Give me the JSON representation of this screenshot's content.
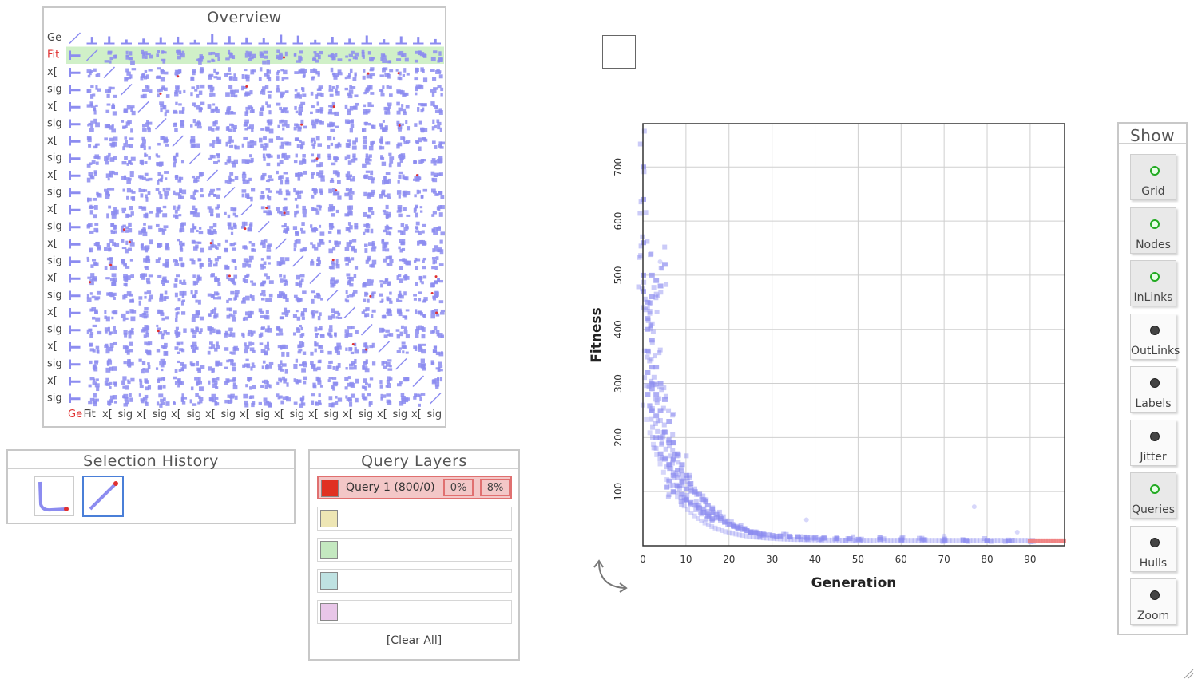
{
  "overview": {
    "title": "Overview",
    "row_labels": [
      "Ge",
      "Fit",
      "x[",
      "sig",
      "x[",
      "sig",
      "x[",
      "sig",
      "x[",
      "sig",
      "x[",
      "sig",
      "x[",
      "sig",
      "x[",
      "sig",
      "x[",
      "sig",
      "x[",
      "sig",
      "x[",
      "sig"
    ],
    "col_labels": [
      "Ge",
      "Fit",
      "x[",
      "sig",
      "x[",
      "sig",
      "x[",
      "sig",
      "x[",
      "sig",
      "x[",
      "sig",
      "x[",
      "sig",
      "x[",
      "sig",
      "x[",
      "sig",
      "x[",
      "sig",
      "x[",
      "sig"
    ],
    "highlight_label_color": "#e03030",
    "cell_color": "#8c8cf0",
    "query_highlight_color": "#d0f0c8"
  },
  "selection_history": {
    "title": "Selection History"
  },
  "query_layers": {
    "title": "Query Layers",
    "layers": [
      {
        "color": "#e03020",
        "label": "Query 1 (800/0)",
        "pct_a": "0%",
        "pct_b": "8%"
      },
      {
        "color": "#eee6b4",
        "label": ""
      },
      {
        "color": "#c4e8c0",
        "label": ""
      },
      {
        "color": "#bfe2e2",
        "label": ""
      },
      {
        "color": "#e8c6e8",
        "label": ""
      }
    ],
    "clear_all": "[Clear All]"
  },
  "show_panel": {
    "title": "Show",
    "toggles": [
      {
        "label": "Grid",
        "on": true
      },
      {
        "label": "Nodes",
        "on": true
      },
      {
        "label": "InLinks",
        "on": true
      },
      {
        "label": "OutLinks",
        "on": false
      },
      {
        "label": "Labels",
        "on": false
      },
      {
        "label": "Jitter",
        "on": false
      },
      {
        "label": "Queries",
        "on": true
      },
      {
        "label": "Hulls",
        "on": false
      },
      {
        "label": "Zoom",
        "on": false
      }
    ]
  },
  "chart_data": {
    "type": "scatter",
    "xlabel": "Generation",
    "ylabel": "Fitness",
    "xlim": [
      0,
      98
    ],
    "ylim": [
      0,
      780
    ],
    "x_ticks": [
      0,
      10,
      20,
      30,
      40,
      50,
      60,
      70,
      80,
      90
    ],
    "y_ticks": [
      100,
      200,
      300,
      400,
      500,
      600,
      700
    ],
    "grid": true,
    "point_color": "#8c8cf0",
    "query_color": "#f08080",
    "series": [
      {
        "x": [
          0,
          0,
          0,
          0,
          0,
          1,
          1,
          1,
          1,
          1,
          1,
          2,
          2,
          2,
          2,
          2,
          2,
          3,
          3,
          3,
          3,
          3,
          4,
          4,
          4,
          4,
          4,
          5,
          5,
          5,
          5,
          6,
          6,
          6,
          6,
          7,
          7,
          7,
          7,
          8,
          8,
          8,
          9,
          9,
          9,
          10,
          10,
          10,
          11,
          11,
          12,
          12,
          13,
          13,
          14,
          14,
          15,
          15,
          16,
          16,
          17,
          18,
          19,
          20,
          21,
          22,
          23,
          24,
          25,
          26,
          27,
          28,
          30,
          32,
          34,
          36,
          38,
          40,
          42,
          45,
          48,
          50,
          55,
          60,
          65,
          70,
          75,
          80,
          85,
          90
        ],
        "y": [
          700,
          640,
          560,
          500,
          470,
          450,
          420,
          400,
          360,
          320,
          280,
          500,
          460,
          380,
          330,
          290,
          250,
          490,
          330,
          280,
          240,
          200,
          480,
          300,
          250,
          200,
          170,
          520,
          270,
          210,
          160,
          230,
          190,
          150,
          120,
          190,
          160,
          130,
          100,
          170,
          140,
          110,
          150,
          120,
          95,
          130,
          105,
          85,
          115,
          80,
          100,
          75,
          95,
          70,
          85,
          62,
          75,
          55,
          68,
          50,
          58,
          50,
          44,
          40,
          36,
          33,
          30,
          28,
          26,
          24,
          22,
          21,
          19,
          18,
          17,
          16,
          15,
          15,
          14,
          13,
          13,
          12,
          12,
          11,
          11,
          10,
          10,
          10,
          9,
          8
        ]
      }
    ],
    "query_range_x": [
      90,
      98
    ],
    "outliers": [
      {
        "x": 4,
        "y": 525
      },
      {
        "x": 38,
        "y": 48
      },
      {
        "x": 77,
        "y": 72
      },
      {
        "x": 87,
        "y": 25
      },
      {
        "x": 70,
        "y": 18
      }
    ]
  }
}
